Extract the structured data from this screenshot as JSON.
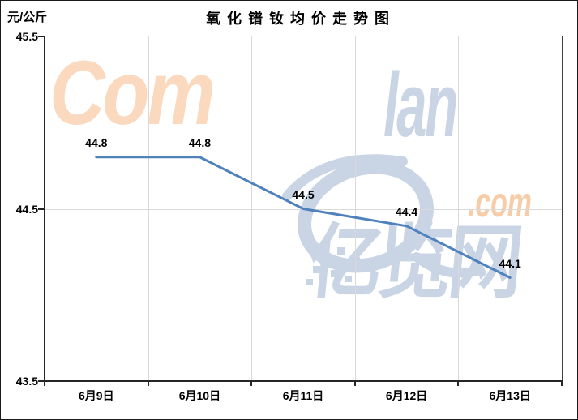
{
  "frame": {
    "title": "氧化镨钕均价走势图",
    "unit_label": "元/公斤"
  },
  "chart_data": {
    "type": "line",
    "title": "氧化镨钕均价走势图",
    "ylabel": "元/公斤",
    "categories": [
      "6月9日",
      "6月10日",
      "6月11日",
      "6月12日",
      "6月13日"
    ],
    "values": [
      44.8,
      44.8,
      44.5,
      44.4,
      44.1
    ],
    "data_labels": [
      "44.8",
      "44.8",
      "44.5",
      "44.4",
      "44.1"
    ],
    "ylim": [
      43.5,
      45.5
    ],
    "ytick_labels": [
      "45.5",
      "44.5",
      "43.5"
    ],
    "grid": true,
    "legend": false,
    "line_color": "#4F81BD"
  },
  "watermark": {
    "latin_prefix": "Com",
    "latin_mid": "lan",
    "latin_suffix": ".com",
    "cn_text": "亿览网"
  },
  "colors": {
    "background": "#FFFFFF",
    "text": "#000000",
    "line": "#4F81BD",
    "gridline": "#D9D9D9",
    "axis": "#262626",
    "plot_border": "#404040",
    "watermark_peach": "#FAD9BF",
    "watermark_peach_strong": "#F7CDA9",
    "watermark_blue": "#C9D4E4",
    "watermark_blue_soft": "#D8E0EC"
  }
}
